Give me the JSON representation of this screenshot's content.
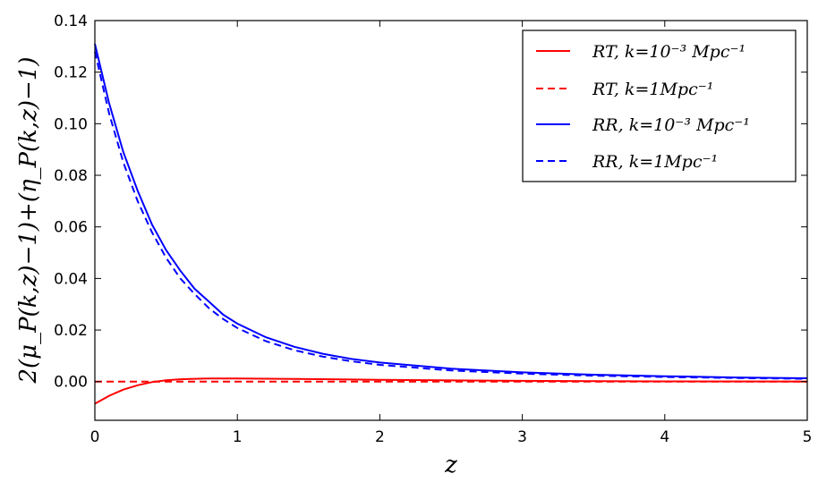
{
  "chart_data": {
    "type": "line",
    "xlabel": "z",
    "ylabel": "2(μ_P(k,z)−1)+(η_P(k,z)−1)",
    "xlim": [
      0,
      5
    ],
    "ylim": [
      -0.015,
      0.14
    ],
    "x_ticks": [
      "0",
      "1",
      "2",
      "3",
      "4",
      "5"
    ],
    "y_ticks": [
      "0.00",
      "0.02",
      "0.04",
      "0.06",
      "0.08",
      "0.10",
      "0.12",
      "0.14"
    ],
    "grid": false,
    "legend_position": "top-right",
    "colors": {
      "red": "#ff0000",
      "blue": "#0000ff"
    },
    "legend": [
      {
        "label": "RT, k=10⁻³ Mpc⁻¹",
        "color": "#ff0000",
        "style": "solid"
      },
      {
        "label": "RT, k=1Mpc⁻¹",
        "color": "#ff0000",
        "style": "dashed"
      },
      {
        "label": "RR, k=10⁻³ Mpc⁻¹",
        "color": "#0000ff",
        "style": "solid"
      },
      {
        "label": "RR, k=1Mpc⁻¹",
        "color": "#0000ff",
        "style": "dashed"
      }
    ],
    "series": [
      {
        "name": "RT, k=10⁻³ Mpc⁻¹",
        "color": "#ff0000",
        "style": "solid",
        "x": [
          0,
          0.1,
          0.2,
          0.3,
          0.4,
          0.5,
          0.6,
          0.7,
          0.8,
          1.0,
          1.5,
          2.0,
          3.0,
          4.0,
          5.0
        ],
        "y": [
          -0.0086,
          -0.0055,
          -0.0031,
          -0.0014,
          -0.0002,
          0.0005,
          0.0009,
          0.0011,
          0.0012,
          0.0012,
          0.001,
          0.0007,
          0.0003,
          0.0001,
          0.0
        ]
      },
      {
        "name": "RT, k=1Mpc⁻¹",
        "color": "#ff0000",
        "style": "dashed",
        "x": [
          0,
          1,
          2,
          3,
          4,
          5
        ],
        "y": [
          0.0,
          0.0,
          0.0,
          0.0,
          0.0,
          0.0
        ]
      },
      {
        "name": "RR, k=10⁻³ Mpc⁻¹",
        "color": "#0000ff",
        "style": "solid",
        "x": [
          0,
          0.1,
          0.2,
          0.3,
          0.4,
          0.5,
          0.6,
          0.7,
          0.8,
          0.9,
          1.0,
          1.2,
          1.4,
          1.6,
          1.8,
          2.0,
          2.5,
          3.0,
          3.5,
          4.0,
          4.5,
          5.0
        ],
        "y": [
          0.131,
          0.108,
          0.089,
          0.074,
          0.061,
          0.051,
          0.043,
          0.036,
          0.031,
          0.026,
          0.0225,
          0.0172,
          0.0135,
          0.0108,
          0.0088,
          0.0074,
          0.005,
          0.0036,
          0.0027,
          0.0021,
          0.0016,
          0.0013
        ]
      },
      {
        "name": "RR, k=1Mpc⁻¹",
        "color": "#0000ff",
        "style": "dashed",
        "x": [
          0,
          0.1,
          0.2,
          0.3,
          0.4,
          0.5,
          0.6,
          0.7,
          0.8,
          0.9,
          1.0,
          1.2,
          1.4,
          1.6,
          1.8,
          2.0,
          2.5,
          3.0,
          3.5,
          4.0,
          4.5,
          5.0
        ],
        "y": [
          0.128,
          0.104,
          0.085,
          0.07,
          0.058,
          0.048,
          0.04,
          0.034,
          0.0285,
          0.0243,
          0.0208,
          0.0157,
          0.0122,
          0.0097,
          0.0079,
          0.0065,
          0.0043,
          0.0031,
          0.0023,
          0.0018,
          0.0014,
          0.0011
        ]
      }
    ]
  }
}
